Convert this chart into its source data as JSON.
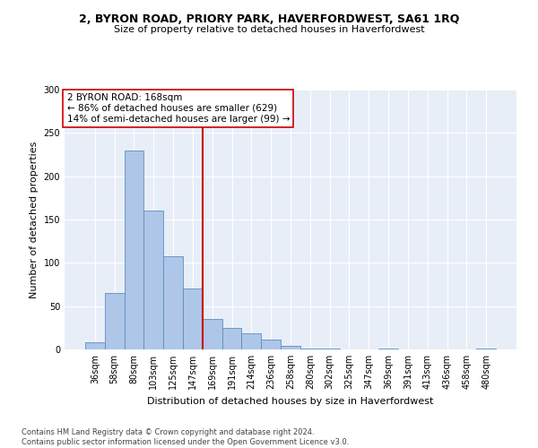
{
  "title": "2, BYRON ROAD, PRIORY PARK, HAVERFORDWEST, SA61 1RQ",
  "subtitle": "Size of property relative to detached houses in Haverfordwest",
  "xlabel": "Distribution of detached houses by size in Haverfordwest",
  "ylabel": "Number of detached properties",
  "categories": [
    "36sqm",
    "58sqm",
    "80sqm",
    "103sqm",
    "125sqm",
    "147sqm",
    "169sqm",
    "191sqm",
    "214sqm",
    "236sqm",
    "258sqm",
    "280sqm",
    "302sqm",
    "325sqm",
    "347sqm",
    "369sqm",
    "391sqm",
    "413sqm",
    "436sqm",
    "458sqm",
    "480sqm"
  ],
  "values": [
    8,
    65,
    230,
    160,
    108,
    70,
    35,
    25,
    19,
    11,
    4,
    1,
    1,
    0,
    0,
    1,
    0,
    0,
    0,
    0,
    1
  ],
  "bar_color": "#aec6e8",
  "bar_edge_color": "#5a8fc0",
  "vline_x_idx": 6,
  "vline_color": "#cc0000",
  "annotation_text": "2 BYRON ROAD: 168sqm\n← 86% of detached houses are smaller (629)\n14% of semi-detached houses are larger (99) →",
  "annotation_box_color": "#ffffff",
  "annotation_box_edge": "#cc0000",
  "ylim": [
    0,
    300
  ],
  "yticks": [
    0,
    50,
    100,
    150,
    200,
    250,
    300
  ],
  "footnote": "Contains HM Land Registry data © Crown copyright and database right 2024.\nContains public sector information licensed under the Open Government Licence v3.0.",
  "bg_color": "#e8eef8",
  "fig_bg_color": "#ffffff",
  "title_fontsize": 9,
  "subtitle_fontsize": 8,
  "ylabel_fontsize": 8,
  "xlabel_fontsize": 8,
  "tick_fontsize": 7,
  "annot_fontsize": 7.5,
  "footnote_fontsize": 6
}
